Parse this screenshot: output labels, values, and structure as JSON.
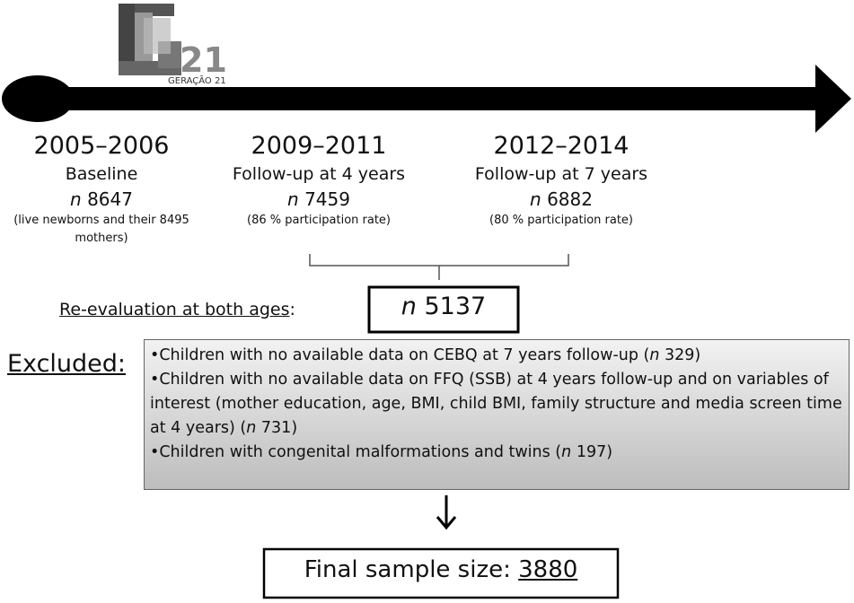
{
  "logo": {
    "number": "21",
    "caption": "GERAÇÃO 21"
  },
  "n_symbol": "n",
  "phases": [
    {
      "years": "2005–2006",
      "label": "Baseline",
      "n": 8647,
      "note": "(live newborns and their 8495 mothers)"
    },
    {
      "years": "2009–2011",
      "label": "Follow-up at 4 years",
      "n": 7459,
      "note": "(86 % participation rate)"
    },
    {
      "years": "2012–2014",
      "label": "Follow-up at 7 years",
      "n": 6882,
      "note": "(80 % participation rate)"
    }
  ],
  "reevaluation": {
    "label": "Re-evaluation at both ages",
    "colon": ":",
    "n": 5137
  },
  "excluded": {
    "label": "Excluded:",
    "items": [
      {
        "text": "•Children with no available data on CEBQ at 7 years follow-up (",
        "n": 329,
        "suffix": ")"
      },
      {
        "text": "•Children with no available data on FFQ (SSB) at 4 years follow-up and on variables of interest (mother education, age, BMI, child BMI, family structure and media screen time at 4 years) (",
        "n": 731,
        "suffix": ")"
      },
      {
        "text": "•Children with congenital malformations and twins (",
        "n": 197,
        "suffix": ")"
      }
    ]
  },
  "final": {
    "label": "Final sample size: ",
    "value": 3880
  }
}
